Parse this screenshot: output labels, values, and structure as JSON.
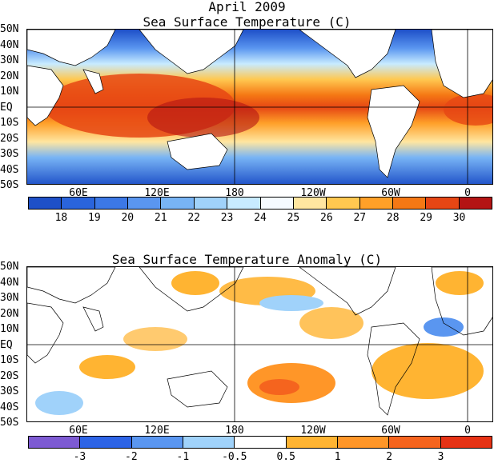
{
  "title": "April 2009",
  "panel1": {
    "title": "Sea Surface Temperature (C)",
    "lat_labels": [
      "50N",
      "40N",
      "30N",
      "20N",
      "10N",
      "EQ",
      "10S",
      "20S",
      "30S",
      "40S",
      "50S"
    ],
    "lon_labels": [
      "60E",
      "120E",
      "180",
      "120W",
      "60W",
      "0"
    ],
    "colorbar": {
      "labels": [
        "18",
        "19",
        "20",
        "21",
        "22",
        "23",
        "24",
        "25",
        "26",
        "27",
        "28",
        "29",
        "30"
      ],
      "colors": [
        "#1e50c8",
        "#2a64dc",
        "#3c78e6",
        "#5a96f0",
        "#78b4f5",
        "#a0d2fa",
        "#c8ebff",
        "#f5faff",
        "#ffe6a0",
        "#ffc850",
        "#ffa028",
        "#f57814",
        "#e64614",
        "#b41414"
      ]
    }
  },
  "panel2": {
    "title": "Sea Surface Temperature Anomaly (C)",
    "lat_labels": [
      "50N",
      "40N",
      "30N",
      "20N",
      "10N",
      "EQ",
      "10S",
      "20S",
      "30S",
      "40S",
      "50S"
    ],
    "lon_labels": [
      "60E",
      "120E",
      "180",
      "120W",
      "60W",
      "0"
    ],
    "colorbar": {
      "labels": [
        "-3",
        "-2",
        "-1",
        "-0.5",
        "0.5",
        "1",
        "2",
        "3"
      ],
      "colors": [
        "#7d5ad2",
        "#2d64e6",
        "#5a96f0",
        "#a0d2fa",
        "#ffffff",
        "#ffb432",
        "#ff9628",
        "#f5641e",
        "#e63214"
      ]
    }
  }
}
